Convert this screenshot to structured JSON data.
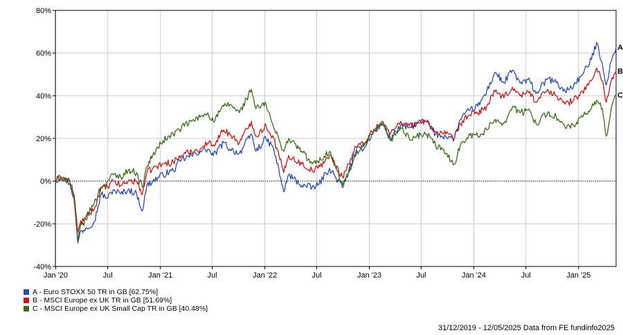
{
  "chart_data": {
    "type": "line",
    "x_ticks": [
      "Jan '20",
      "Jul",
      "Jan '21",
      "Jul",
      "Jan '22",
      "Jul",
      "Jan '23",
      "Jul",
      "Jan '24",
      "Jul",
      "Jan '25"
    ],
    "y_ticks": [
      "80%",
      "60%",
      "40%",
      "20%",
      "0%",
      "-20%",
      "-40%"
    ],
    "ylim": [
      -40,
      80
    ],
    "x_range": [
      "2019-12-31",
      "2025-05-12"
    ],
    "grid": true,
    "legend_position": "bottom-left",
    "series": [
      {
        "id": "A",
        "name": "A - Euro STOXX 50 TR in GB [62.75%]",
        "color": "#2b4ca6",
        "points": [
          [
            "2019-12-31",
            0
          ],
          [
            "2020-01-20",
            2
          ],
          [
            "2020-02-19",
            -1
          ],
          [
            "2020-03-05",
            -8
          ],
          [
            "2020-03-18",
            -29
          ],
          [
            "2020-03-26",
            -24
          ],
          [
            "2020-04-15",
            -22
          ],
          [
            "2020-05-15",
            -19
          ],
          [
            "2020-06-08",
            -6
          ],
          [
            "2020-07-01",
            -8
          ],
          [
            "2020-07-20",
            -4
          ],
          [
            "2020-08-15",
            -6
          ],
          [
            "2020-09-10",
            -4
          ],
          [
            "2020-10-10",
            -6
          ],
          [
            "2020-10-30",
            -14
          ],
          [
            "2020-11-15",
            -2
          ],
          [
            "2020-12-05",
            0
          ],
          [
            "2021-01-10",
            3
          ],
          [
            "2021-02-15",
            5
          ],
          [
            "2021-03-15",
            10
          ],
          [
            "2021-04-20",
            12
          ],
          [
            "2021-05-20",
            14
          ],
          [
            "2021-06-15",
            15
          ],
          [
            "2021-07-05",
            12
          ],
          [
            "2021-08-10",
            18
          ],
          [
            "2021-09-01",
            15
          ],
          [
            "2021-10-04",
            13
          ],
          [
            "2021-11-15",
            22
          ],
          [
            "2021-12-01",
            14
          ],
          [
            "2022-01-05",
            20
          ],
          [
            "2022-02-01",
            15
          ],
          [
            "2022-03-08",
            -5
          ],
          [
            "2022-03-25",
            3
          ],
          [
            "2022-05-10",
            -2
          ],
          [
            "2022-06-15",
            -3
          ],
          [
            "2022-07-05",
            -2
          ],
          [
            "2022-08-15",
            6
          ],
          [
            "2022-09-29",
            -3
          ],
          [
            "2022-10-20",
            4
          ],
          [
            "2022-11-15",
            14
          ],
          [
            "2022-12-15",
            16
          ],
          [
            "2023-01-10",
            22
          ],
          [
            "2023-02-15",
            27
          ],
          [
            "2023-03-15",
            20
          ],
          [
            "2023-04-20",
            26
          ],
          [
            "2023-05-20",
            25
          ],
          [
            "2023-06-15",
            27
          ],
          [
            "2023-07-20",
            28
          ],
          [
            "2023-08-20",
            22
          ],
          [
            "2023-09-25",
            21
          ],
          [
            "2023-10-25",
            20
          ],
          [
            "2023-11-15",
            29
          ],
          [
            "2023-12-15",
            33
          ],
          [
            "2024-01-15",
            35
          ],
          [
            "2024-02-15",
            42
          ],
          [
            "2024-03-15",
            51
          ],
          [
            "2024-04-15",
            46
          ],
          [
            "2024-05-15",
            52
          ],
          [
            "2024-06-10",
            46
          ],
          [
            "2024-07-15",
            47
          ],
          [
            "2024-08-05",
            41
          ],
          [
            "2024-09-15",
            48
          ],
          [
            "2024-10-15",
            46
          ],
          [
            "2024-11-15",
            42
          ],
          [
            "2024-12-15",
            45
          ],
          [
            "2025-01-15",
            50
          ],
          [
            "2025-02-15",
            57
          ],
          [
            "2025-03-05",
            65
          ],
          [
            "2025-03-25",
            55
          ],
          [
            "2025-04-08",
            45
          ],
          [
            "2025-04-25",
            56
          ],
          [
            "2025-05-12",
            62.75
          ]
        ]
      },
      {
        "id": "B",
        "name": "B - MSCI Europe ex UK TR in GB [51.69%]",
        "color": "#c21a1a",
        "points": [
          [
            "2019-12-31",
            0
          ],
          [
            "2020-01-20",
            2
          ],
          [
            "2020-02-19",
            0
          ],
          [
            "2020-03-05",
            -6
          ],
          [
            "2020-03-18",
            -24
          ],
          [
            "2020-03-26",
            -20
          ],
          [
            "2020-04-15",
            -17
          ],
          [
            "2020-05-15",
            -13
          ],
          [
            "2020-06-08",
            -3
          ],
          [
            "2020-07-01",
            -3
          ],
          [
            "2020-07-20",
            0
          ],
          [
            "2020-08-15",
            -2
          ],
          [
            "2020-09-10",
            0
          ],
          [
            "2020-10-10",
            0
          ],
          [
            "2020-10-30",
            -6
          ],
          [
            "2020-11-15",
            4
          ],
          [
            "2020-12-05",
            6
          ],
          [
            "2021-01-10",
            8
          ],
          [
            "2021-02-15",
            9
          ],
          [
            "2021-03-15",
            12
          ],
          [
            "2021-04-20",
            14
          ],
          [
            "2021-05-20",
            15
          ],
          [
            "2021-06-15",
            18
          ],
          [
            "2021-07-05",
            17
          ],
          [
            "2021-08-10",
            24
          ],
          [
            "2021-09-01",
            22
          ],
          [
            "2021-10-04",
            18
          ],
          [
            "2021-11-15",
            28
          ],
          [
            "2021-12-01",
            21
          ],
          [
            "2022-01-05",
            26
          ],
          [
            "2022-02-01",
            20
          ],
          [
            "2022-03-08",
            4
          ],
          [
            "2022-03-25",
            12
          ],
          [
            "2022-05-10",
            8
          ],
          [
            "2022-06-15",
            5
          ],
          [
            "2022-07-05",
            6
          ],
          [
            "2022-08-15",
            12
          ],
          [
            "2022-09-29",
            2
          ],
          [
            "2022-10-20",
            8
          ],
          [
            "2022-11-15",
            16
          ],
          [
            "2022-12-15",
            18
          ],
          [
            "2023-01-10",
            23
          ],
          [
            "2023-02-15",
            28
          ],
          [
            "2023-03-15",
            22
          ],
          [
            "2023-04-20",
            28
          ],
          [
            "2023-05-20",
            26
          ],
          [
            "2023-06-15",
            27
          ],
          [
            "2023-07-20",
            28
          ],
          [
            "2023-08-20",
            23
          ],
          [
            "2023-09-25",
            22
          ],
          [
            "2023-10-25",
            20
          ],
          [
            "2023-11-15",
            27
          ],
          [
            "2023-12-15",
            31
          ],
          [
            "2024-01-15",
            32
          ],
          [
            "2024-02-15",
            35
          ],
          [
            "2024-03-15",
            42
          ],
          [
            "2024-04-15",
            39
          ],
          [
            "2024-05-15",
            44
          ],
          [
            "2024-06-10",
            40
          ],
          [
            "2024-07-15",
            42
          ],
          [
            "2024-08-05",
            37
          ],
          [
            "2024-09-15",
            43
          ],
          [
            "2024-10-15",
            40
          ],
          [
            "2024-11-15",
            36
          ],
          [
            "2024-12-15",
            38
          ],
          [
            "2025-01-15",
            42
          ],
          [
            "2025-02-15",
            47
          ],
          [
            "2025-03-05",
            53
          ],
          [
            "2025-03-25",
            47
          ],
          [
            "2025-04-08",
            37
          ],
          [
            "2025-04-25",
            47
          ],
          [
            "2025-05-12",
            51.69
          ]
        ]
      },
      {
        "id": "C",
        "name": "C - MSCI Europe ex UK Small Cap TR in GB [40.48%]",
        "color": "#3a6b1c",
        "points": [
          [
            "2019-12-31",
            0
          ],
          [
            "2020-01-20",
            2
          ],
          [
            "2020-02-19",
            0
          ],
          [
            "2020-03-05",
            -8
          ],
          [
            "2020-03-18",
            -28
          ],
          [
            "2020-03-26",
            -22
          ],
          [
            "2020-04-15",
            -18
          ],
          [
            "2020-05-15",
            -10
          ],
          [
            "2020-06-08",
            -3
          ],
          [
            "2020-07-01",
            0
          ],
          [
            "2020-07-20",
            3
          ],
          [
            "2020-08-15",
            2
          ],
          [
            "2020-09-10",
            5
          ],
          [
            "2020-10-10",
            4
          ],
          [
            "2020-10-30",
            -3
          ],
          [
            "2020-11-15",
            7
          ],
          [
            "2020-12-05",
            12
          ],
          [
            "2021-01-10",
            19
          ],
          [
            "2021-02-15",
            22
          ],
          [
            "2021-03-15",
            25
          ],
          [
            "2021-04-20",
            28
          ],
          [
            "2021-05-20",
            30
          ],
          [
            "2021-06-15",
            32
          ],
          [
            "2021-07-05",
            28
          ],
          [
            "2021-08-10",
            35
          ],
          [
            "2021-09-01",
            36
          ],
          [
            "2021-10-04",
            32
          ],
          [
            "2021-11-15",
            43
          ],
          [
            "2021-12-01",
            34
          ],
          [
            "2022-01-05",
            36
          ],
          [
            "2022-02-01",
            25
          ],
          [
            "2022-03-08",
            14
          ],
          [
            "2022-03-25",
            20
          ],
          [
            "2022-05-10",
            14
          ],
          [
            "2022-06-15",
            8
          ],
          [
            "2022-07-05",
            9
          ],
          [
            "2022-08-15",
            14
          ],
          [
            "2022-09-29",
            -2
          ],
          [
            "2022-10-20",
            4
          ],
          [
            "2022-11-15",
            12
          ],
          [
            "2022-12-15",
            17
          ],
          [
            "2023-01-10",
            22
          ],
          [
            "2023-02-15",
            27
          ],
          [
            "2023-03-15",
            19
          ],
          [
            "2023-04-20",
            25
          ],
          [
            "2023-05-20",
            20
          ],
          [
            "2023-06-15",
            21
          ],
          [
            "2023-07-20",
            22
          ],
          [
            "2023-08-20",
            17
          ],
          [
            "2023-09-25",
            13
          ],
          [
            "2023-10-25",
            8
          ],
          [
            "2023-11-15",
            17
          ],
          [
            "2023-12-15",
            22
          ],
          [
            "2024-01-15",
            21
          ],
          [
            "2024-02-15",
            24
          ],
          [
            "2024-03-15",
            29
          ],
          [
            "2024-04-15",
            27
          ],
          [
            "2024-05-15",
            35
          ],
          [
            "2024-06-10",
            32
          ],
          [
            "2024-07-15",
            33
          ],
          [
            "2024-08-05",
            27
          ],
          [
            "2024-09-15",
            32
          ],
          [
            "2024-10-15",
            30
          ],
          [
            "2024-11-15",
            25
          ],
          [
            "2024-12-15",
            26
          ],
          [
            "2025-01-15",
            30
          ],
          [
            "2025-02-15",
            34
          ],
          [
            "2025-03-05",
            38
          ],
          [
            "2025-03-25",
            34
          ],
          [
            "2025-04-08",
            21
          ],
          [
            "2025-04-25",
            34
          ],
          [
            "2025-05-12",
            40.48
          ]
        ]
      }
    ]
  },
  "footer": {
    "text": "31/12/2019 - 12/05/2025 Data from FE fundinfo2025"
  }
}
